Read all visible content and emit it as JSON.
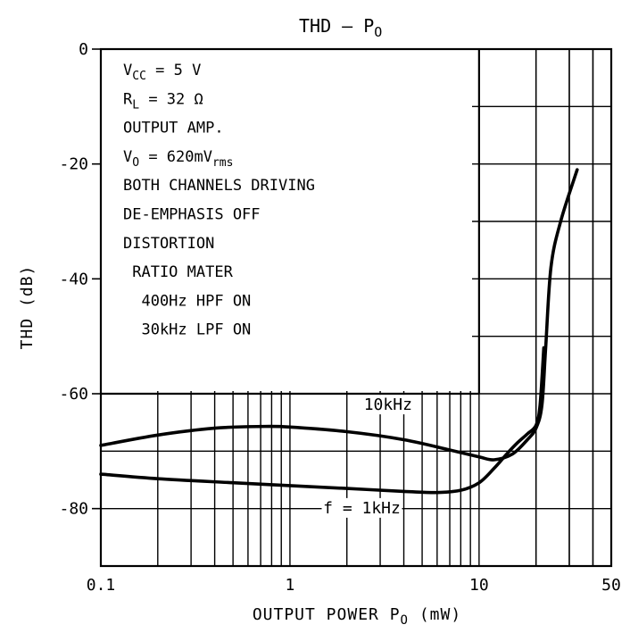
{
  "chart_data": {
    "type": "line",
    "title": "THD — P",
    "title_sub": "O",
    "xlabel": "OUTPUT POWER  P",
    "xlabel_sub": "O",
    "xlabel_unit": " (mW)",
    "ylabel": "THD  (dB)",
    "x_scale": "log",
    "xlim": [
      0.1,
      50
    ],
    "ylim": [
      -90,
      0
    ],
    "x_ticks": [
      {
        "value": 0.1,
        "label": "0.1"
      },
      {
        "value": 1,
        "label": "1"
      },
      {
        "value": 10,
        "label": "10"
      },
      {
        "value": 50,
        "label": "50"
      }
    ],
    "y_ticks": [
      {
        "value": 0,
        "label": "0"
      },
      {
        "value": -20,
        "label": "-20"
      },
      {
        "value": -40,
        "label": "-40"
      },
      {
        "value": -60,
        "label": "-60"
      },
      {
        "value": -80,
        "label": "-80"
      }
    ],
    "grid": true,
    "conditions": [
      {
        "main": "V",
        "sub": "CC",
        "rest": " = 5 V"
      },
      {
        "main": "R",
        "sub": "L",
        "rest": " = 32 Ω"
      },
      {
        "main": "OUTPUT AMP.",
        "sub": "",
        "rest": ""
      },
      {
        "main": "V",
        "sub": "O",
        "rest": " = 620mV",
        "sub2": "rms"
      },
      {
        "main": "BOTH CHANNELS DRIVING",
        "sub": "",
        "rest": ""
      },
      {
        "main": "DE-EMPHASIS OFF",
        "sub": "",
        "rest": ""
      },
      {
        "main": "DISTORTION",
        "sub": "",
        "rest": ""
      },
      {
        "main": " RATIO MATER",
        "sub": "",
        "rest": ""
      },
      {
        "main": "  400Hz HPF ON",
        "sub": "",
        "rest": ""
      },
      {
        "main": "  30kHz LPF ON",
        "sub": "",
        "rest": ""
      }
    ],
    "series": [
      {
        "name": "10kHz",
        "x": [
          0.1,
          0.2,
          0.4,
          0.7,
          1,
          2,
          4,
          7,
          10,
          12,
          15,
          18,
          20,
          21.5,
          22.5,
          24,
          27,
          33
        ],
        "y": [
          -69,
          -67.2,
          -66,
          -65.7,
          -65.8,
          -66.6,
          -68,
          -69.8,
          -71,
          -71.5,
          -70.5,
          -68,
          -66,
          -62,
          -52,
          -38,
          -30,
          -21
        ]
      },
      {
        "name": "f = 1kHz",
        "x": [
          0.1,
          0.2,
          0.5,
          1,
          2,
          4,
          6,
          8,
          10,
          12,
          14,
          16,
          18,
          20,
          21,
          22
        ],
        "y": [
          -74,
          -74.8,
          -75.5,
          -76,
          -76.5,
          -77,
          -77.2,
          -76.8,
          -75.5,
          -73,
          -70.5,
          -68.5,
          -67,
          -65.5,
          -62,
          -52
        ]
      }
    ]
  }
}
